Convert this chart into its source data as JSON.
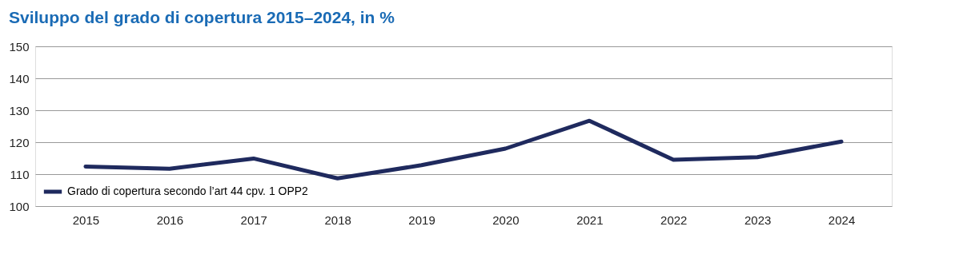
{
  "chart_data": {
    "type": "line",
    "title": "Sviluppo del grado di copertura 2015–2024, in %",
    "categories": [
      "2015",
      "2016",
      "2017",
      "2018",
      "2019",
      "2020",
      "2021",
      "2022",
      "2023",
      "2024"
    ],
    "series": [
      {
        "name": "Grado di copertura secondo l’art 44 cpv. 1 OPP2",
        "color": "#1f2a5e",
        "values": [
          112.4,
          111.7,
          114.9,
          108.7,
          112.8,
          118.0,
          126.7,
          114.5,
          115.3,
          120.2
        ]
      }
    ],
    "ylim": [
      100,
      150
    ],
    "yticks": [
      100,
      110,
      120,
      130,
      140,
      150
    ],
    "grid": "y",
    "legend": "bottom left",
    "marker": "none",
    "line_style": "solid"
  }
}
